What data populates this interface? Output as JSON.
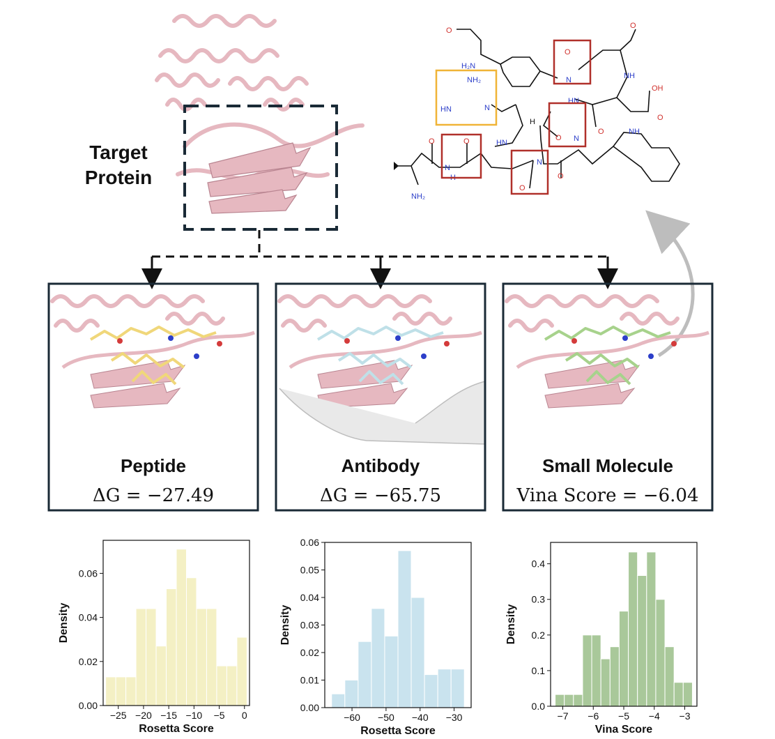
{
  "target": {
    "label_line1": "Target",
    "label_line2": "Protein"
  },
  "panels": [
    {
      "title": "Peptide",
      "metric_prefix": "ΔG = ",
      "metric_value": "−27.49",
      "ligand_color": "#f0d77a"
    },
    {
      "title": "Antibody",
      "metric_prefix": "ΔG = ",
      "metric_value": "−65.75",
      "ligand_color": "#bfe0e8"
    },
    {
      "title": "Small Molecule",
      "metric_prefix": "Vina Score = ",
      "metric_value": "−6.04",
      "ligand_color": "#a7d28c"
    }
  ],
  "molecule": {
    "atoms": [
      "O",
      "H2N",
      "NH2",
      "HN",
      "N",
      "H",
      "O",
      "N",
      "HN",
      "OH",
      "O",
      "NH",
      "O",
      "O",
      "N",
      "O",
      "N",
      "O",
      "N",
      "O",
      "N",
      "NH2",
      "H",
      "O",
      "NH"
    ],
    "box_colors": {
      "amide": "#b0302a",
      "guanidine": "#f0b437"
    }
  },
  "colors": {
    "protein": "#e6b8c0",
    "protein_dark": "#b98591",
    "frame": "#1a2a36",
    "arrow_gray": "#bdbdbd"
  },
  "chart_data": [
    {
      "type": "bar",
      "xlabel": "Rosetta Score",
      "ylabel": "Density",
      "color": "#f4f0c4",
      "edges": [
        -27.5,
        -25.5,
        -23.5,
        -21.5,
        -19.5,
        -17.5,
        -15.5,
        -13.5,
        -11.5,
        -9.5,
        -7.5,
        -5.5,
        -3.5,
        -1.5,
        0.5
      ],
      "values": [
        0.013,
        0.013,
        0.013,
        0.044,
        0.044,
        0.027,
        0.053,
        0.071,
        0.058,
        0.044,
        0.044,
        0.018,
        0.018,
        0.031
      ],
      "xticks": [
        -25,
        -20,
        -15,
        -10,
        -5,
        0
      ],
      "xticklabels": [
        "−25",
        "−20",
        "−15",
        "−10",
        "−5",
        "0"
      ],
      "yticks": [
        0.0,
        0.02,
        0.04,
        0.06
      ],
      "yticklabels": [
        "0.00",
        "0.02",
        "0.04",
        "0.06"
      ],
      "xlim": [
        -28,
        1
      ],
      "ylim": [
        0,
        0.075
      ]
    },
    {
      "type": "bar",
      "xlabel": "Rosetta Score",
      "ylabel": "Density",
      "color": "#c9e3ee",
      "edges": [
        -66,
        -62.1,
        -58.2,
        -54.3,
        -50.4,
        -46.5,
        -42.6,
        -38.7,
        -34.8,
        -30.9,
        -27
      ],
      "values": [
        0.005,
        0.01,
        0.024,
        0.036,
        0.026,
        0.057,
        0.04,
        0.012,
        0.014,
        0.014
      ],
      "xticks": [
        -60,
        -50,
        -40,
        -30
      ],
      "xticklabels": [
        "−60",
        "−50",
        "−40",
        "−30"
      ],
      "yticks": [
        0.0,
        0.01,
        0.02,
        0.03,
        0.04,
        0.05,
        0.06
      ],
      "yticklabels": [
        "0.00",
        "0.01",
        "0.02",
        "0.03",
        "0.04",
        "0.05",
        "0.06"
      ],
      "xlim": [
        -68,
        -25
      ],
      "ylim": [
        0,
        0.06
      ]
    },
    {
      "type": "bar",
      "xlabel": "Vina Score",
      "ylabel": "Density",
      "color": "#a9c89a",
      "edges": [
        -7.25,
        -6.95,
        -6.65,
        -6.35,
        -6.05,
        -5.75,
        -5.45,
        -5.15,
        -4.85,
        -4.55,
        -4.25,
        -3.95,
        -3.65,
        -3.35,
        -3.05,
        -2.75
      ],
      "values": [
        0.033,
        0.033,
        0.033,
        0.2,
        0.2,
        0.133,
        0.167,
        0.267,
        0.433,
        0.367,
        0.433,
        0.3,
        0.167,
        0.067,
        0.067
      ],
      "xticks": [
        -7,
        -6,
        -5,
        -4,
        -3
      ],
      "xticklabels": [
        "−7",
        "−6",
        "−5",
        "−4",
        "−3"
      ],
      "yticks": [
        0.0,
        0.1,
        0.2,
        0.3,
        0.4
      ],
      "yticklabels": [
        "0.0",
        "0.1",
        "0.2",
        "0.3",
        "0.4"
      ],
      "xlim": [
        -7.4,
        -2.6
      ],
      "ylim": [
        0,
        0.46
      ]
    }
  ]
}
